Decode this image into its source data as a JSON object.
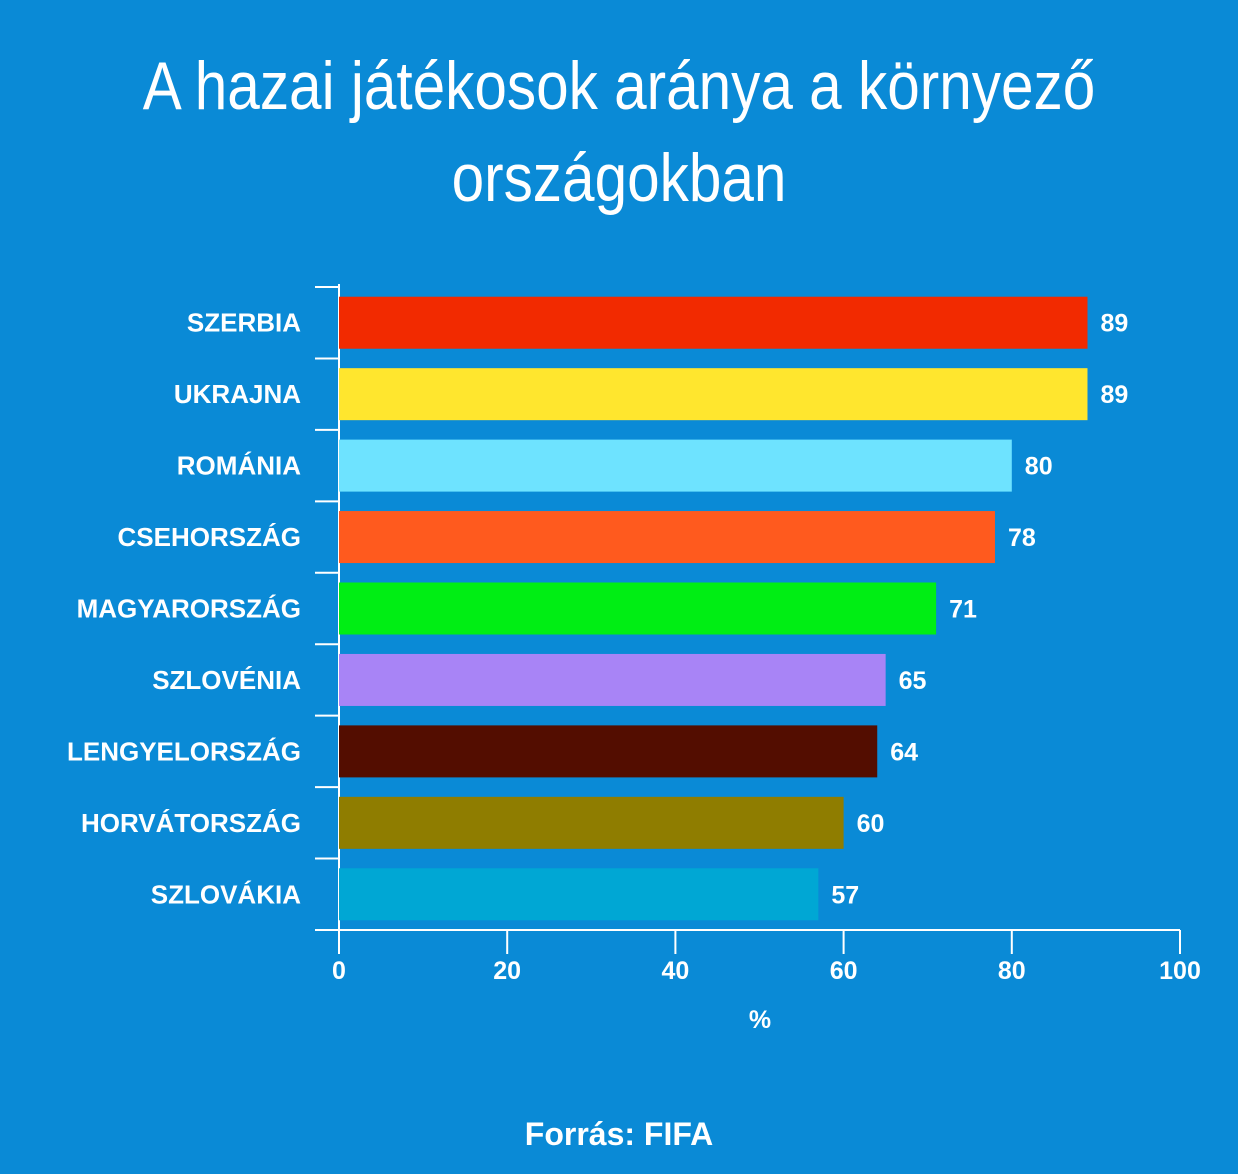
{
  "page": {
    "background": "#0a8ad6",
    "source": "Forrás: FIFA"
  },
  "chart_data": {
    "type": "bar",
    "orientation": "horizontal",
    "title": "A hazai játékosok aránya a környező országokban",
    "xlabel": "%",
    "ylabel": "",
    "xlim": [
      0,
      100
    ],
    "xticks": [
      "0",
      "20",
      "40",
      "60",
      "80",
      "100"
    ],
    "grid": false,
    "categories": [
      "SZERBIA",
      "UKRAJNA",
      "ROMÁNIA",
      "CSEHORSZÁG",
      "MAGYARORSZÁG",
      "SZLOVÉNIA",
      "LENGYELORSZÁG",
      "HORVÁTORSZÁG",
      "SZLOVÁKIA"
    ],
    "values": [
      89,
      89,
      80,
      78,
      71,
      65,
      64,
      60,
      57
    ],
    "colors": [
      "#f22a00",
      "#ffe62e",
      "#6ee3ff",
      "#ff5a1e",
      "#00ee14",
      "#a884f6",
      "#530d00",
      "#8f7d00",
      "#00a7d4"
    ]
  }
}
